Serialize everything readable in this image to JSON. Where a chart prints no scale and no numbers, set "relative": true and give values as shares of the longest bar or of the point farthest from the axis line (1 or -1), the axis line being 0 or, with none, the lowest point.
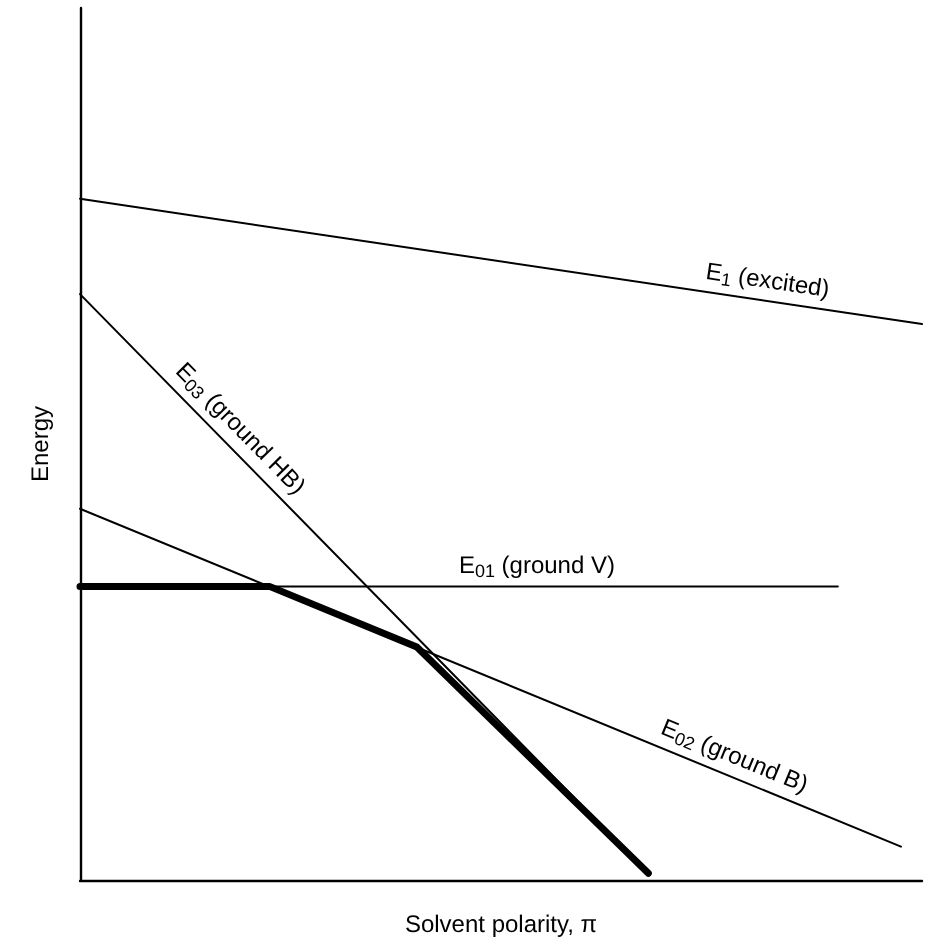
{
  "chart_data": {
    "type": "line",
    "relative": true,
    "xlabel": "Solvent polarity, π",
    "ylabel": "Energy",
    "grid": false,
    "legend": false,
    "line_style": "solid",
    "categories": [
      null,
      null,
      null,
      null,
      null,
      null,
      null,
      null,
      null,
      null,
      null,
      null,
      null,
      null,
      null,
      null,
      null,
      null,
      null,
      null,
      null,
      null,
      null,
      null,
      null,
      null,
      null,
      null,
      null,
      null,
      null,
      null,
      null,
      null,
      null,
      null,
      null,
      null,
      null,
      null,
      null
    ],
    "series": [
      {
        "name": "E$_{1}$ (excited)",
        "color": "#000000",
        "values": [
          1,
          null,
          null,
          null,
          null,
          null,
          null,
          null,
          null,
          null,
          null,
          null,
          null,
          null,
          null,
          null,
          null,
          null,
          null,
          null,
          null,
          null,
          null,
          null,
          null,
          null,
          null,
          null,
          null,
          null,
          null,
          null,
          null,
          null,
          null,
          null,
          null,
          null,
          null,
          null,
          0.816
        ]
      },
      {
        "name": "E$_{01}$ (ground V)",
        "color": "#000000",
        "values": [
          0.431,
          null,
          null,
          null,
          null,
          null,
          null,
          null,
          null,
          null,
          null,
          null,
          null,
          null,
          null,
          null,
          null,
          null,
          null,
          null,
          null,
          null,
          null,
          null,
          null,
          null,
          null,
          null,
          null,
          null,
          null,
          null,
          null,
          null,
          null,
          null,
          0.431,
          null,
          null,
          null,
          null
        ]
      },
      {
        "name": "E$_{02}$ (ground B)",
        "color": "#000000",
        "values": [
          0.545,
          null,
          null,
          null,
          null,
          null,
          null,
          null,
          null,
          null,
          null,
          null,
          null,
          null,
          null,
          null,
          null,
          null,
          null,
          null,
          null,
          null,
          null,
          null,
          null,
          null,
          null,
          null,
          null,
          null,
          null,
          null,
          null,
          null,
          null,
          null,
          null,
          null,
          null,
          0.049,
          null
        ]
      },
      {
        "name": "E$_{03}$ (ground HB)",
        "color": "#000000",
        "values": [
          0.86,
          null,
          null,
          null,
          null,
          null,
          null,
          null,
          null,
          null,
          null,
          null,
          null,
          null,
          null,
          null,
          null,
          null,
          null,
          null,
          null,
          null,
          null,
          null,
          null,
          null,
          null,
          0.01,
          null,
          null,
          null,
          null,
          null,
          null,
          null,
          null,
          null,
          null,
          null,
          null,
          null
        ]
      },
      {
        "color": "#000000",
        "values": [
          0.431,
          null,
          null,
          null,
          null,
          null,
          null,
          null,
          null,
          0.431,
          null,
          null,
          null,
          null,
          null,
          null,
          0.342,
          null,
          null,
          null,
          null,
          null,
          null,
          null,
          null,
          null,
          null,
          0.01,
          null,
          null,
          null,
          null,
          null,
          null,
          null,
          null,
          null,
          null,
          null,
          null,
          null
        ]
      }
    ]
  }
}
